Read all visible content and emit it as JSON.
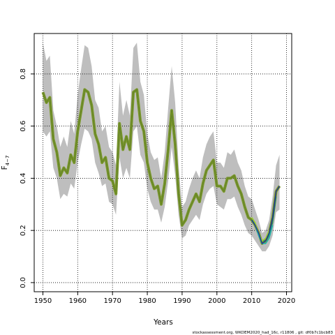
{
  "chart_data": {
    "type": "line",
    "xlabel": "Years",
    "ylabel_main": "F",
    "ylabel_sub": "4−7",
    "xlim": [
      1947.5,
      2021.5
    ],
    "ylim": [
      -0.035,
      0.955
    ],
    "x_ticks": [
      1950,
      1960,
      1970,
      1980,
      1990,
      2000,
      2010,
      2020
    ],
    "y_ticks": [
      0.0,
      0.2,
      0.4,
      0.6,
      0.8
    ],
    "x_tick_labels": [
      "1950",
      "1960",
      "1970",
      "1980",
      "1990",
      "2000",
      "2010",
      "2020"
    ],
    "y_tick_labels": [
      "0.0",
      "0.2",
      "0.4",
      "0.6",
      "0.8"
    ],
    "grid": true,
    "colors": {
      "band": "#bebebe",
      "outline": "#7c9a2a",
      "main": "#1c2a9a",
      "retro_1": "#2e8b57",
      "retro_2": "#20b2aa",
      "retro_3": "#9acd32"
    },
    "x": [
      1950,
      1951,
      1952,
      1953,
      1954,
      1955,
      1956,
      1957,
      1958,
      1959,
      1960,
      1961,
      1962,
      1963,
      1964,
      1965,
      1966,
      1967,
      1968,
      1969,
      1970,
      1971,
      1972,
      1973,
      1974,
      1975,
      1976,
      1977,
      1978,
      1979,
      1980,
      1981,
      1982,
      1983,
      1984,
      1985,
      1986,
      1987,
      1988,
      1989,
      1990,
      1991,
      1992,
      1993,
      1994,
      1995,
      1996,
      1997,
      1998,
      1999,
      2000,
      2001,
      2002,
      2003,
      2004,
      2005,
      2006,
      2007,
      2008,
      2009,
      2010,
      2011,
      2012,
      2013,
      2014,
      2015,
      2016,
      2017,
      2018
    ],
    "series": [
      {
        "values": [
          0.73,
          0.69,
          0.71,
          0.55,
          0.5,
          0.41,
          0.44,
          0.42,
          0.49,
          0.46,
          0.58,
          0.66,
          0.74,
          0.73,
          0.68,
          0.57,
          0.53,
          0.46,
          0.48,
          0.4,
          0.39,
          0.34,
          0.61,
          0.51,
          0.56,
          0.51,
          0.73,
          0.74,
          0.62,
          0.58,
          0.46,
          0.4,
          0.36,
          0.37,
          0.3,
          0.38,
          0.51,
          0.66,
          0.53,
          0.34,
          0.22,
          0.24,
          0.28,
          0.31,
          0.34,
          0.31,
          0.38,
          0.43,
          0.45,
          0.47,
          0.37,
          0.37,
          0.35,
          0.4,
          0.4,
          0.41,
          0.37,
          0.34,
          0.29,
          0.25,
          0.24,
          0.22,
          0.19,
          0.15,
          0.16,
          0.19,
          0.25,
          0.35,
          0.37
        ]
      }
    ],
    "band": {
      "upper": [
        0.92,
        0.85,
        0.87,
        0.66,
        0.6,
        0.52,
        0.56,
        0.52,
        0.62,
        0.57,
        0.72,
        0.82,
        0.91,
        0.9,
        0.83,
        0.7,
        0.67,
        0.58,
        0.6,
        0.52,
        0.5,
        0.45,
        0.77,
        0.64,
        0.7,
        0.64,
        0.9,
        0.92,
        0.77,
        0.72,
        0.57,
        0.5,
        0.47,
        0.48,
        0.4,
        0.5,
        0.67,
        0.83,
        0.69,
        0.45,
        0.29,
        0.31,
        0.36,
        0.4,
        0.43,
        0.4,
        0.48,
        0.53,
        0.56,
        0.58,
        0.46,
        0.46,
        0.44,
        0.5,
        0.49,
        0.51,
        0.46,
        0.43,
        0.37,
        0.33,
        0.32,
        0.28,
        0.24,
        0.19,
        0.2,
        0.24,
        0.33,
        0.45,
        0.49
      ],
      "lower": [
        0.58,
        0.56,
        0.58,
        0.44,
        0.4,
        0.32,
        0.34,
        0.33,
        0.38,
        0.36,
        0.46,
        0.53,
        0.59,
        0.58,
        0.55,
        0.46,
        0.42,
        0.37,
        0.38,
        0.31,
        0.3,
        0.26,
        0.48,
        0.4,
        0.44,
        0.4,
        0.58,
        0.6,
        0.49,
        0.46,
        0.36,
        0.31,
        0.28,
        0.28,
        0.23,
        0.29,
        0.39,
        0.52,
        0.41,
        0.26,
        0.17,
        0.18,
        0.22,
        0.24,
        0.26,
        0.24,
        0.3,
        0.34,
        0.36,
        0.37,
        0.3,
        0.29,
        0.28,
        0.32,
        0.32,
        0.33,
        0.29,
        0.26,
        0.22,
        0.19,
        0.18,
        0.16,
        0.14,
        0.12,
        0.12,
        0.14,
        0.18,
        0.27,
        0.28
      ]
    },
    "retros": [
      {
        "color_key": "retro_1",
        "years": [
          2010,
          2011,
          2012,
          2013,
          2014,
          2015,
          2016,
          2017
        ],
        "values": [
          0.24,
          0.22,
          0.19,
          0.16,
          0.16,
          0.18,
          0.23,
          0.33
        ]
      },
      {
        "color_key": "retro_2",
        "years": [
          2010,
          2011,
          2012,
          2013,
          2014,
          2015,
          2016
        ],
        "values": [
          0.24,
          0.22,
          0.18,
          0.15,
          0.15,
          0.17,
          0.22
        ]
      },
      {
        "color_key": "retro_3",
        "years": [
          2010,
          2011,
          2012,
          2013,
          2014,
          2015
        ],
        "values": [
          0.25,
          0.23,
          0.19,
          0.16,
          0.17,
          0.2
        ]
      }
    ],
    "footnote": "stockassessment.org, WKDEM2020_had_16c, r11806 , git: df0b7c1bcb83"
  }
}
